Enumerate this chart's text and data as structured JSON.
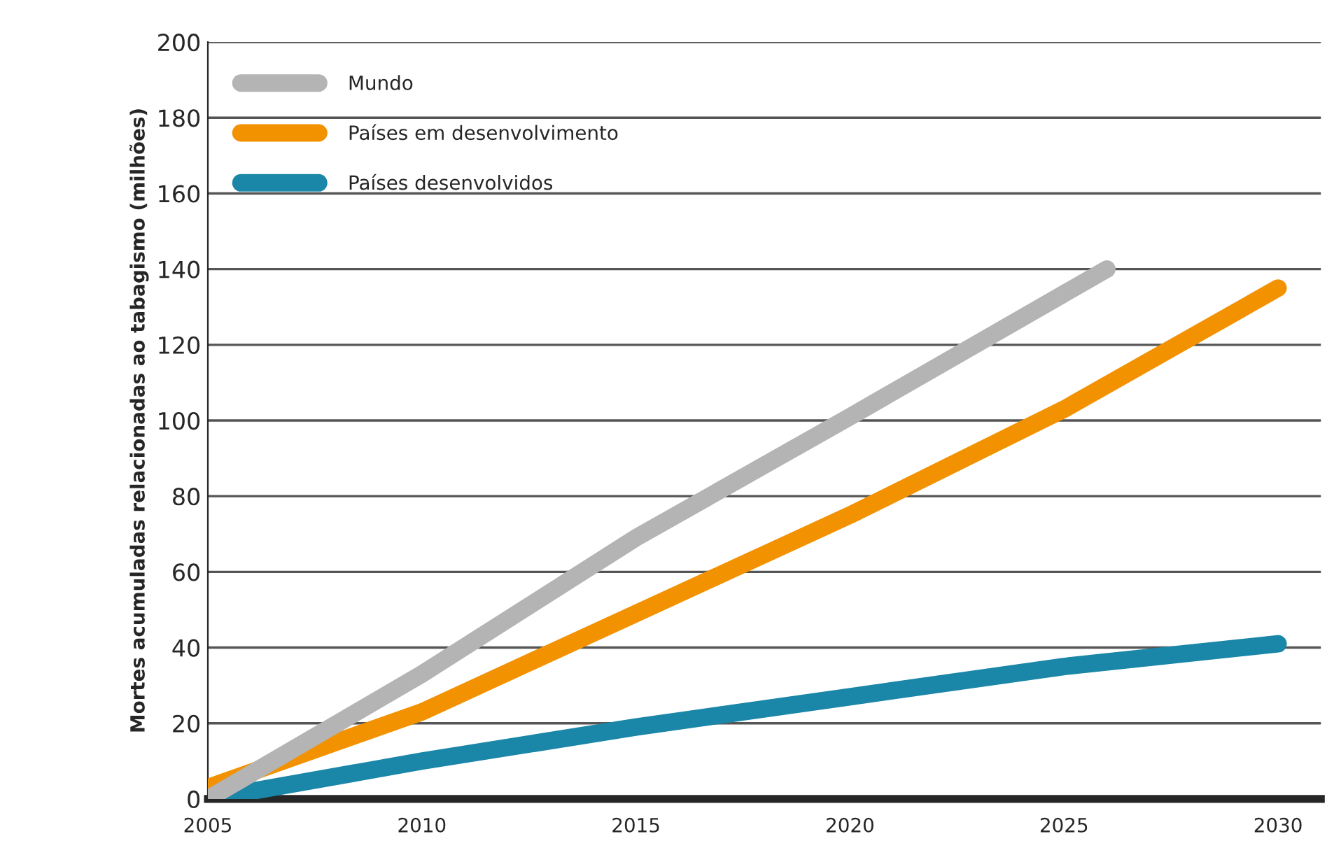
{
  "chart_data": {
    "type": "line",
    "ylabel": "Mortes acumuladas relacionadas ao tabagismo (milhões)",
    "series": [
      {
        "name": "Mundo",
        "color": "#b4b4b4",
        "x": [
          2005,
          2010,
          2015,
          2020,
          2026
        ],
        "values": [
          0,
          33,
          69,
          101,
          140
        ]
      },
      {
        "name": "Países em desenvolvimento",
        "color": "#f39200",
        "x": [
          2005,
          2010,
          2015,
          2020,
          2025,
          2030
        ],
        "values": [
          3,
          23,
          49,
          75,
          103,
          135
        ]
      },
      {
        "name": "Países desenvolvidos",
        "color": "#1a86a8",
        "x": [
          2005,
          2010,
          2015,
          2020,
          2025,
          2030
        ],
        "values": [
          0,
          10,
          19,
          27,
          35,
          41
        ]
      }
    ],
    "xlim": [
      2005,
      2031
    ],
    "xticks": [
      2005,
      2010,
      2015,
      2020,
      2025,
      2030
    ],
    "ylim": [
      0,
      200
    ],
    "yticks": [
      0,
      20,
      40,
      60,
      80,
      100,
      120,
      140,
      160,
      180,
      200
    ],
    "grid": "y",
    "legend": "top left",
    "marker": "none",
    "line_style": "solid"
  }
}
